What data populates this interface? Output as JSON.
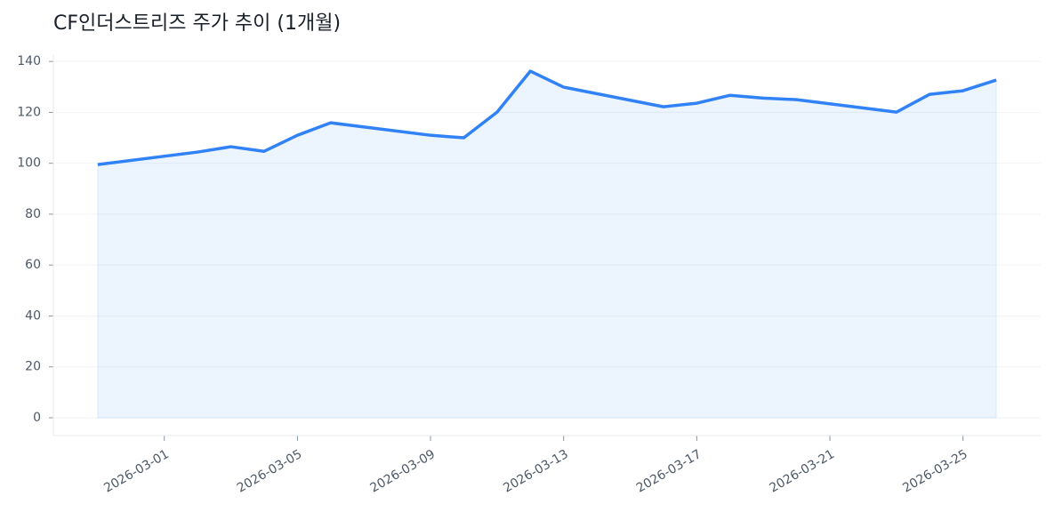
{
  "chart_data": {
    "type": "line",
    "title": "CF인더스트리즈 주가 추이 (1개월)",
    "x": [
      "2026-02-27",
      "2026-03-02",
      "2026-03-03",
      "2026-03-04",
      "2026-03-05",
      "2026-03-06",
      "2026-03-09",
      "2026-03-10",
      "2026-03-11",
      "2026-03-12",
      "2026-03-13",
      "2026-03-16",
      "2026-03-17",
      "2026-03-18",
      "2026-03-19",
      "2026-03-20",
      "2026-03-23",
      "2026-03-24",
      "2026-03-25",
      "2026-03-26"
    ],
    "series": [
      {
        "color": "#3182f6",
        "values": [
          99.5,
          104.4,
          106.5,
          104.7,
          111.0,
          115.9,
          111.0,
          110.0,
          120.1,
          136.2,
          129.9,
          122.2,
          123.6,
          126.7,
          125.6,
          125.0,
          120.1,
          127.1,
          128.5,
          132.7
        ]
      }
    ],
    "xlim": [
      "2026-02-25T16:00",
      "2026-03-27T08:00"
    ],
    "xticks": [
      "2026-03-01",
      "2026-03-05",
      "2026-03-09",
      "2026-03-13",
      "2026-03-17",
      "2026-03-21",
      "2026-03-25"
    ],
    "ylim": [
      -7,
      142.5
    ],
    "yticks": [
      0,
      20,
      40,
      60,
      80,
      100,
      120,
      140
    ],
    "grid": true,
    "area": true
  }
}
